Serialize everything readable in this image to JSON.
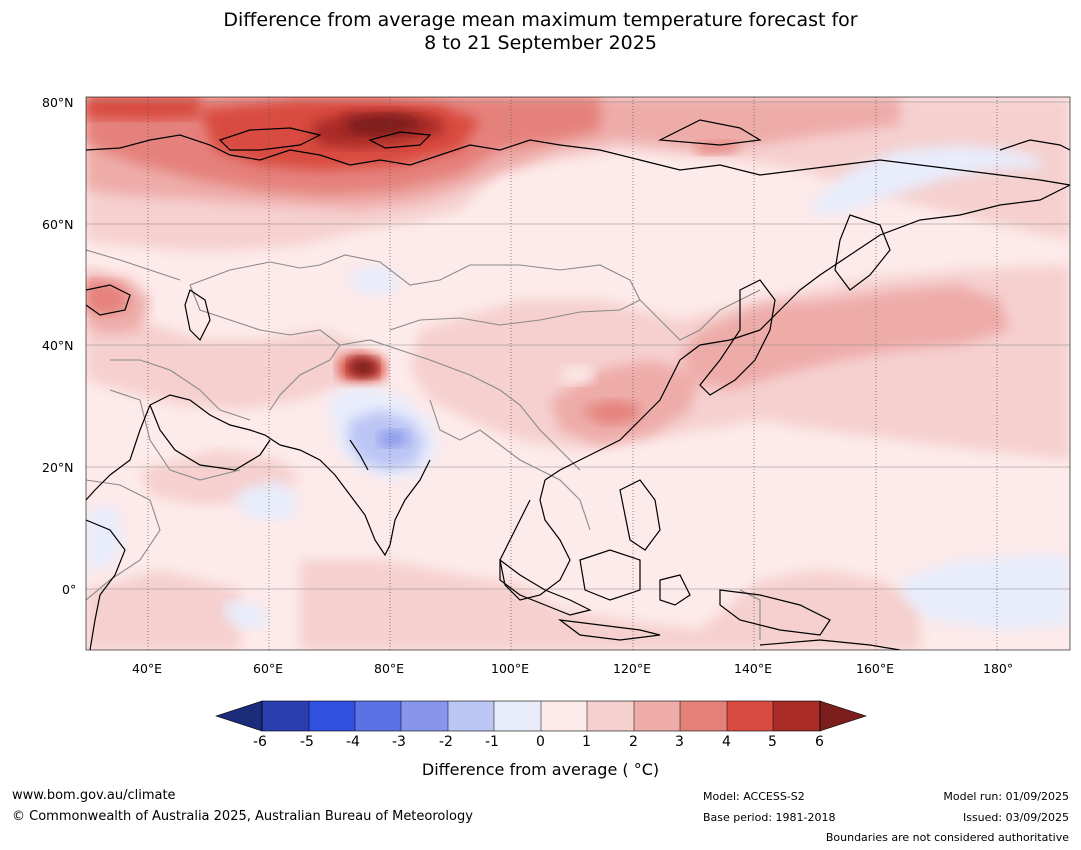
{
  "title": {
    "line1": "Difference from average mean maximum temperature forecast for",
    "line2": "8 to 21 September 2025"
  },
  "map": {
    "lon_ticks": [
      "40°E",
      "60°E",
      "80°E",
      "100°E",
      "120°E",
      "140°E",
      "160°E",
      "180°"
    ],
    "lat_ticks": [
      "80°N",
      "60°N",
      "40°N",
      "20°N",
      "0°"
    ],
    "lon_range": [
      30,
      192
    ],
    "lat_range": [
      -10,
      80
    ]
  },
  "legend": {
    "title": "Difference from average ( °C)",
    "ticks": [
      "-6",
      "-5",
      "-4",
      "-3",
      "-2",
      "-1",
      "0",
      "1",
      "2",
      "3",
      "4",
      "5",
      "6"
    ],
    "colors": [
      "#1b2c7a",
      "#2a3eb0",
      "#3050e0",
      "#5a72e6",
      "#8796eb",
      "#bcc6f5",
      "#e8ecfb",
      "#fdeaea",
      "#f5d0cf",
      "#eeaca9",
      "#e5817b",
      "#d94b41",
      "#a82b25",
      "#7a1f1b"
    ]
  },
  "footer": {
    "url": "www.bom.gov.au/climate",
    "copyright": "© Commonwealth of Australia 2025, Australian Bureau of Meteorology",
    "model": "Model: ACCESS-S2",
    "base_period": "Base period: 1981-2018",
    "model_run": "Model run: 01/09/2025",
    "issued": "Issued: 03/09/2025",
    "disclaimer": "Boundaries are not considered authoritative"
  }
}
